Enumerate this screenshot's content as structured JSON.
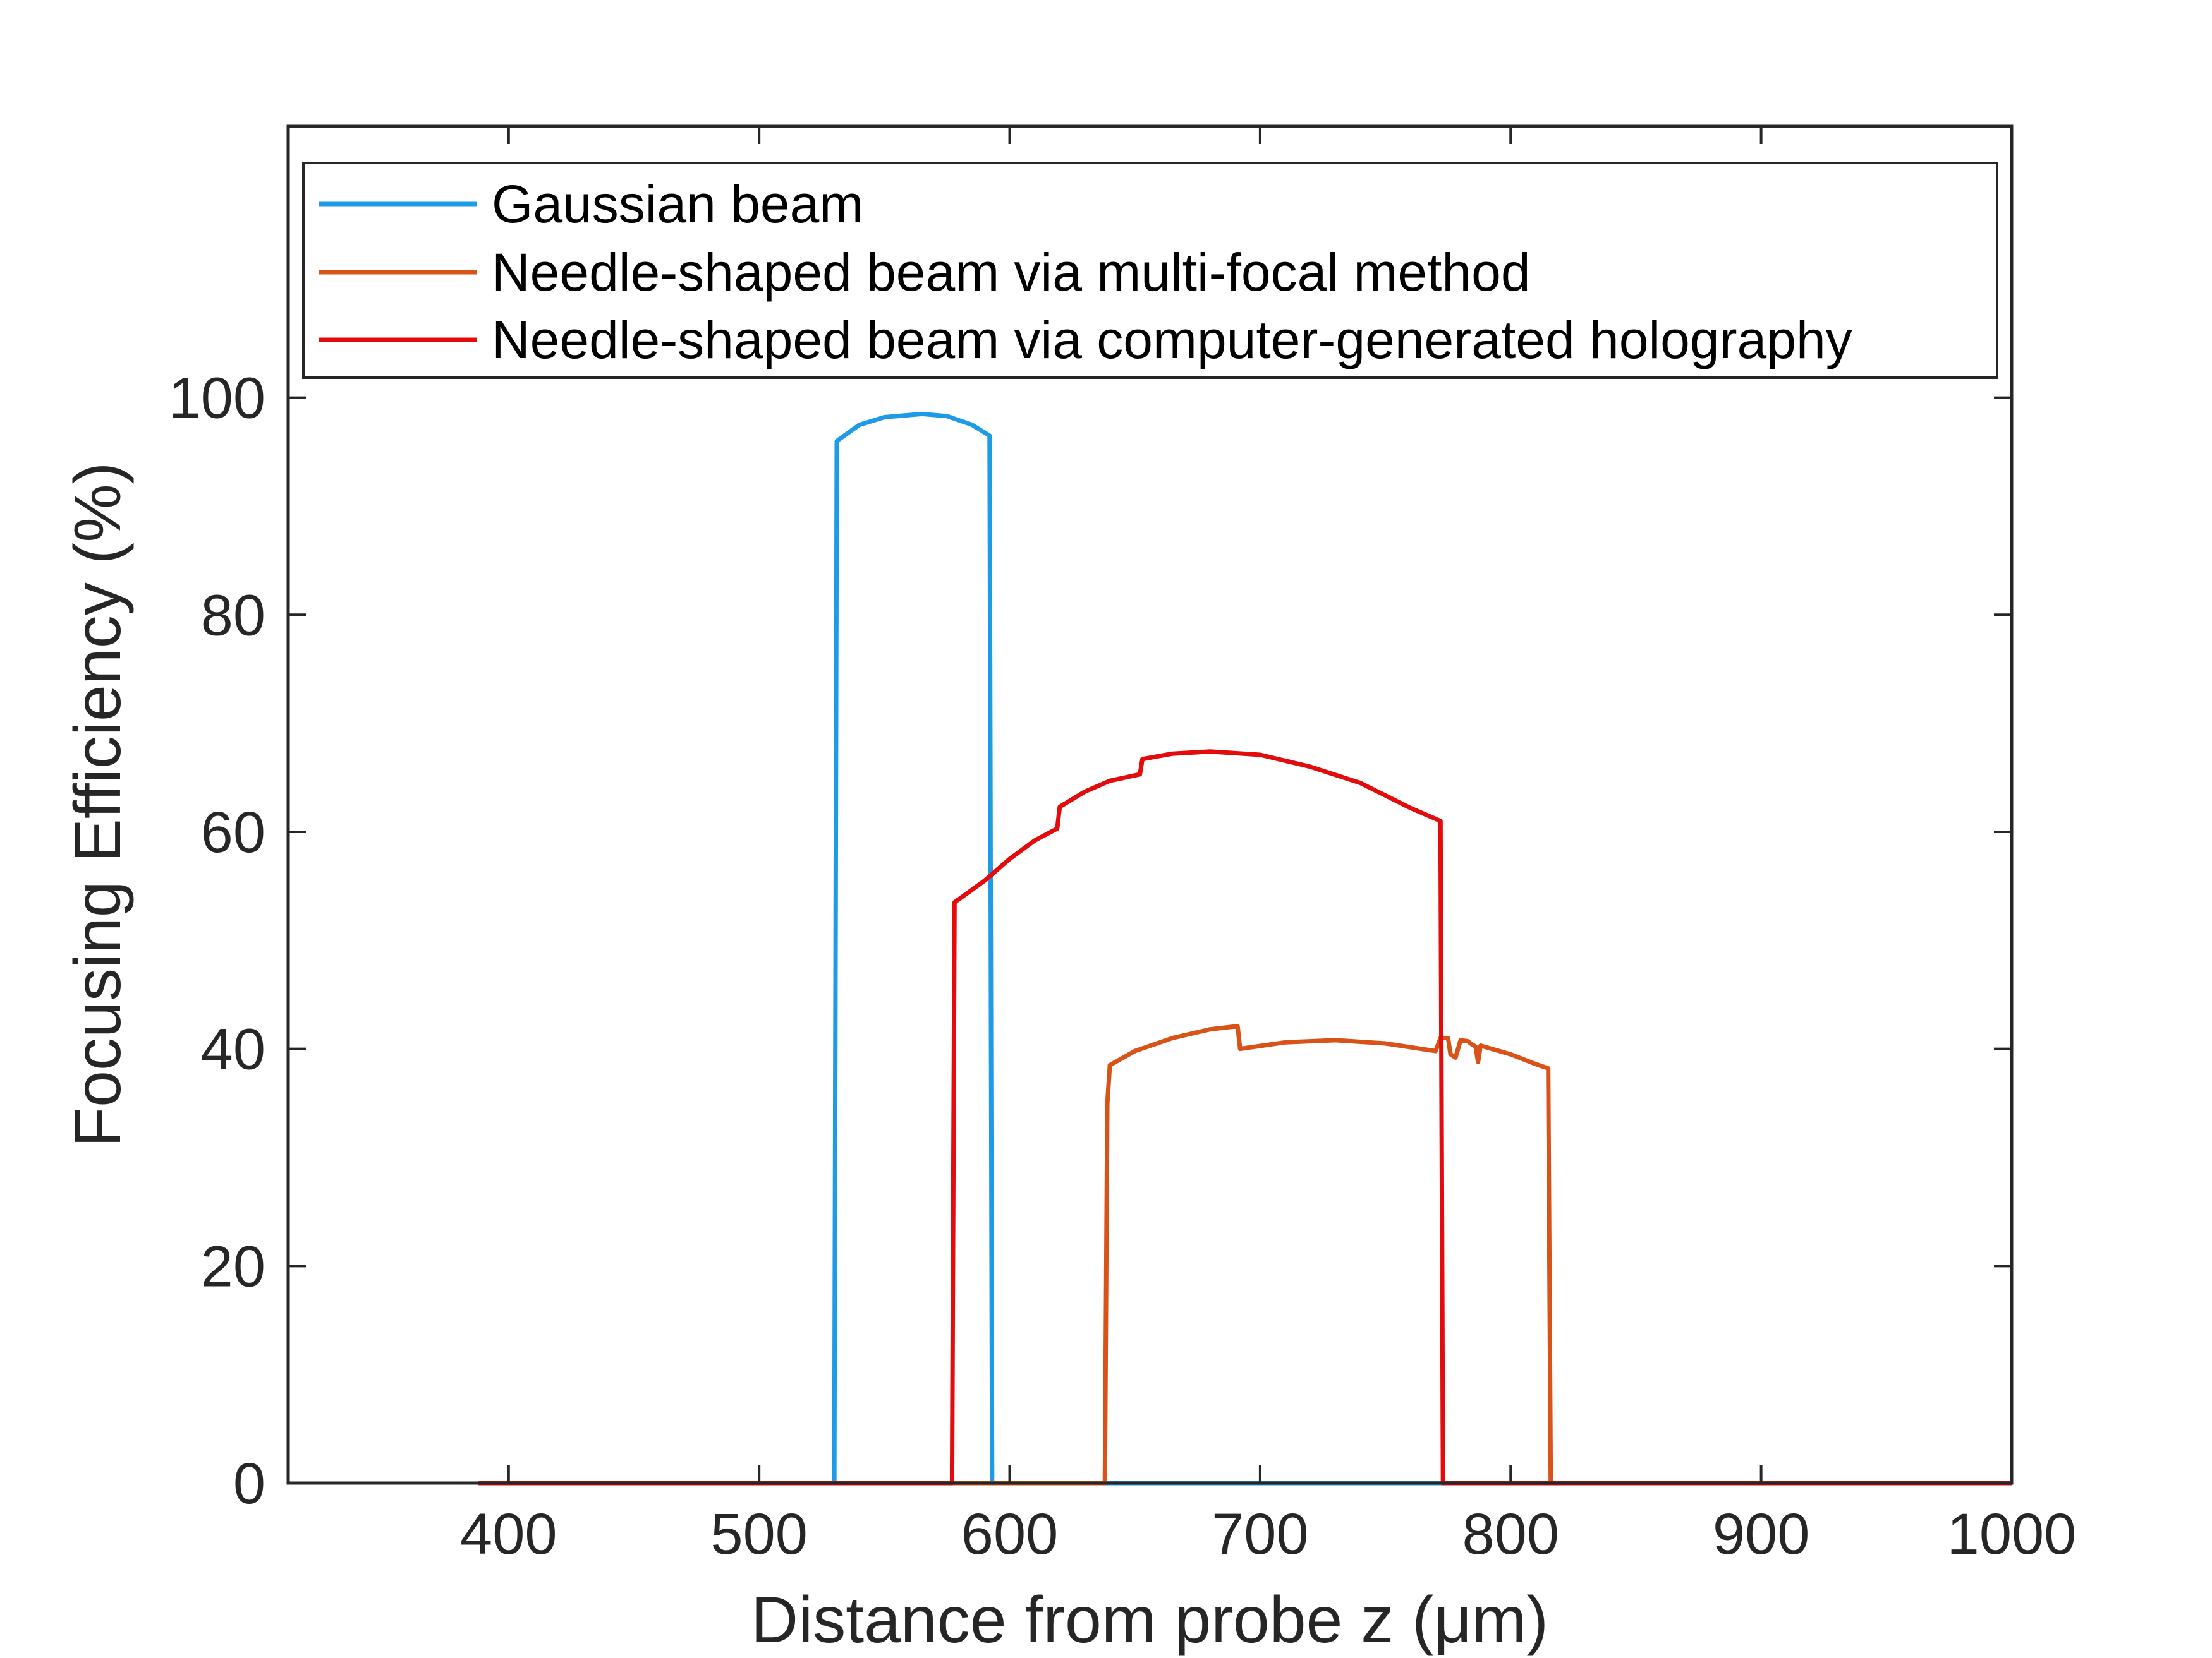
{
  "chart_data": {
    "type": "line",
    "title": "",
    "xlabel": "Distance from probe z (μm)",
    "ylabel": "Focusing Efficiency (%)",
    "xlim": [
      312,
      1000
    ],
    "ylim": [
      0,
      125
    ],
    "x_ticks": [
      400,
      500,
      600,
      700,
      800,
      900,
      1000
    ],
    "y_ticks": [
      0,
      20,
      40,
      60,
      80,
      100
    ],
    "grid": false,
    "legend_position": "top-left",
    "series": [
      {
        "name": "Gaussian beam",
        "color": "#1E9BE6",
        "points": [
          [
            400,
            0
          ],
          [
            530,
            0
          ],
          [
            531,
            96
          ],
          [
            540,
            97.5
          ],
          [
            550,
            98.2
          ],
          [
            565,
            98.5
          ],
          [
            575,
            98.3
          ],
          [
            585,
            97.5
          ],
          [
            592,
            96.5
          ],
          [
            593,
            0
          ],
          [
            773,
            0
          ]
        ]
      },
      {
        "name": "Needle-shaped beam via multi-focal method",
        "color": "#D95319",
        "points": [
          [
            400,
            0
          ],
          [
            638,
            0
          ],
          [
            639,
            35
          ],
          [
            640,
            38.5
          ],
          [
            650,
            39.8
          ],
          [
            665,
            41
          ],
          [
            680,
            41.8
          ],
          [
            691,
            42.1
          ],
          [
            692,
            40
          ],
          [
            710,
            40.6
          ],
          [
            730,
            40.8
          ],
          [
            750,
            40.5
          ],
          [
            770,
            39.8
          ],
          [
            772,
            41
          ],
          [
            775,
            41
          ],
          [
            776,
            39.5
          ],
          [
            778,
            39.2
          ],
          [
            780,
            40.8
          ],
          [
            783,
            40.7
          ],
          [
            784,
            40.5
          ],
          [
            786,
            40.2
          ],
          [
            787,
            38.8
          ],
          [
            788,
            40.3
          ],
          [
            800,
            39.5
          ],
          [
            810,
            38.6
          ],
          [
            815,
            38.2
          ],
          [
            816,
            0
          ],
          [
            1000,
            0
          ]
        ]
      },
      {
        "name": "Needle-shaped beam via computer-generated holography",
        "color": "#E30B0B",
        "points": [
          [
            388,
            0
          ],
          [
            577,
            0
          ],
          [
            578,
            53.5
          ],
          [
            590,
            55.5
          ],
          [
            600,
            57.5
          ],
          [
            610,
            59.2
          ],
          [
            619,
            60.3
          ],
          [
            620,
            62.3
          ],
          [
            630,
            63.7
          ],
          [
            640,
            64.7
          ],
          [
            652,
            65.3
          ],
          [
            653,
            66.7
          ],
          [
            665,
            67.2
          ],
          [
            680,
            67.4
          ],
          [
            700,
            67.1
          ],
          [
            720,
            66
          ],
          [
            740,
            64.5
          ],
          [
            760,
            62.2
          ],
          [
            772,
            61
          ],
          [
            773,
            0
          ],
          [
            1000,
            0
          ]
        ]
      }
    ]
  }
}
